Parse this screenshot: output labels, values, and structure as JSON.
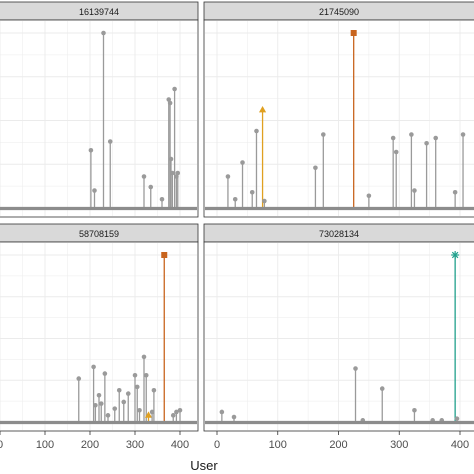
{
  "colors": {
    "stem_default": "#9a9a9a",
    "strip_bg": "#d9d9d9",
    "grid": "#ebebeb",
    "panel_border": "#333333",
    "baseline": "#8c8c8c",
    "accent_square": "#c8641e",
    "accent_triangle": "#e0a020",
    "accent_star": "#21a08c"
  },
  "chart_data": {
    "type": "lollipop",
    "xlabel": "User",
    "ylabel": "",
    "xlim": [
      0,
      420
    ],
    "ylim": [
      0,
      1
    ],
    "x_ticks": [
      0,
      100,
      200,
      300,
      400
    ],
    "x_tick_labels": [
      "0",
      "100",
      "200",
      "300",
      "400"
    ],
    "grid": true,
    "panels": [
      {
        "label": "16139744",
        "points": [
          {
            "x": 202,
            "y": 0.33
          },
          {
            "x": 210,
            "y": 0.1
          },
          {
            "x": 230,
            "y": 1.0
          },
          {
            "x": 245,
            "y": 0.38
          },
          {
            "x": 320,
            "y": 0.18
          },
          {
            "x": 335,
            "y": 0.12
          },
          {
            "x": 360,
            "y": 0.05
          },
          {
            "x": 375,
            "y": 0.62
          },
          {
            "x": 378,
            "y": 0.6
          },
          {
            "x": 380,
            "y": 0.28
          },
          {
            "x": 383,
            "y": 0.2
          },
          {
            "x": 388,
            "y": 0.68
          },
          {
            "x": 392,
            "y": 0.18
          },
          {
            "x": 395,
            "y": 0.2
          }
        ]
      },
      {
        "label": "21745090",
        "points": [
          {
            "x": 18,
            "y": 0.18
          },
          {
            "x": 30,
            "y": 0.05
          },
          {
            "x": 42,
            "y": 0.26
          },
          {
            "x": 58,
            "y": 0.09
          },
          {
            "x": 65,
            "y": 0.44
          },
          {
            "x": 75,
            "y": 0.56,
            "shape": "triangle",
            "color": "accent_triangle"
          },
          {
            "x": 78,
            "y": 0.04
          },
          {
            "x": 162,
            "y": 0.23
          },
          {
            "x": 175,
            "y": 0.42
          },
          {
            "x": 225,
            "y": 1.0,
            "shape": "square",
            "color": "accent_square"
          },
          {
            "x": 250,
            "y": 0.07
          },
          {
            "x": 290,
            "y": 0.4
          },
          {
            "x": 295,
            "y": 0.32
          },
          {
            "x": 320,
            "y": 0.42
          },
          {
            "x": 325,
            "y": 0.1
          },
          {
            "x": 345,
            "y": 0.37
          },
          {
            "x": 360,
            "y": 0.4
          },
          {
            "x": 392,
            "y": 0.09
          },
          {
            "x": 405,
            "y": 0.42
          }
        ]
      },
      {
        "label": "58708159",
        "points": [
          {
            "x": 175,
            "y": 0.26
          },
          {
            "x": 208,
            "y": 0.33
          },
          {
            "x": 212,
            "y": 0.1
          },
          {
            "x": 220,
            "y": 0.16
          },
          {
            "x": 225,
            "y": 0.11
          },
          {
            "x": 233,
            "y": 0.29
          },
          {
            "x": 240,
            "y": 0.04
          },
          {
            "x": 255,
            "y": 0.08
          },
          {
            "x": 265,
            "y": 0.19
          },
          {
            "x": 275,
            "y": 0.12
          },
          {
            "x": 285,
            "y": 0.17
          },
          {
            "x": 300,
            "y": 0.28
          },
          {
            "x": 305,
            "y": 0.21
          },
          {
            "x": 310,
            "y": 0.07
          },
          {
            "x": 320,
            "y": 0.39
          },
          {
            "x": 325,
            "y": 0.28
          },
          {
            "x": 330,
            "y": 0.04,
            "shape": "triangle",
            "color": "accent_triangle"
          },
          {
            "x": 338,
            "y": 0.06
          },
          {
            "x": 342,
            "y": 0.19
          },
          {
            "x": 365,
            "y": 1.0,
            "shape": "square",
            "color": "accent_square"
          },
          {
            "x": 385,
            "y": 0.04
          },
          {
            "x": 392,
            "y": 0.06
          },
          {
            "x": 400,
            "y": 0.07
          }
        ]
      },
      {
        "label": "73028134",
        "points": [
          {
            "x": 8,
            "y": 0.06
          },
          {
            "x": 28,
            "y": 0.03
          },
          {
            "x": 228,
            "y": 0.32
          },
          {
            "x": 240,
            "y": 0.01
          },
          {
            "x": 272,
            "y": 0.2
          },
          {
            "x": 325,
            "y": 0.07
          },
          {
            "x": 355,
            "y": 0.01
          },
          {
            "x": 370,
            "y": 0.01
          },
          {
            "x": 392,
            "y": 1.0,
            "shape": "star",
            "color": "accent_star"
          },
          {
            "x": 395,
            "y": 0.02
          }
        ]
      }
    ]
  }
}
